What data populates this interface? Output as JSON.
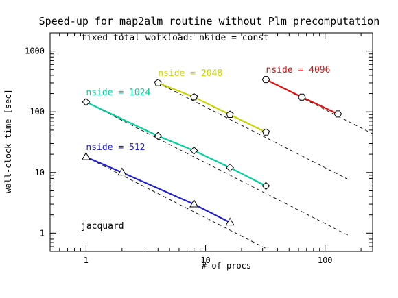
{
  "chart_data": {
    "type": "line",
    "title": "Speed-up for map2alm routine without Plm precomputation",
    "annotations": [
      "fixed total workload: nside = const",
      "jacquard"
    ],
    "xlabel": "# of procs",
    "ylabel": "wall-clock time [sec]",
    "x_scale": "log",
    "y_scale": "log",
    "xlim": [
      0.5,
      250
    ],
    "ylim": [
      0.5,
      2000
    ],
    "x_ticks": [
      1,
      10,
      100
    ],
    "x_tick_labels": [
      "1",
      "10",
      "100"
    ],
    "y_ticks": [
      1,
      10,
      100,
      1000
    ],
    "y_tick_labels": [
      "1",
      "10",
      "100",
      "1000"
    ],
    "grid": false,
    "legend": "none",
    "series": [
      {
        "name": "nside = 512",
        "color": "#2020d0",
        "marker": "triangle",
        "x": [
          1,
          2,
          8,
          16
        ],
        "y": [
          18,
          10,
          3.0,
          1.5
        ],
        "ideal": {
          "x": [
            1,
            32
          ],
          "y": [
            18,
            0.56
          ]
        }
      },
      {
        "name": "nside = 1024",
        "color": "#00d09a",
        "marker": "diamond",
        "x": [
          1,
          4,
          8,
          16,
          32
        ],
        "y": [
          145,
          40,
          23,
          12,
          6
        ],
        "ideal": {
          "x": [
            1,
            160
          ],
          "y": [
            145,
            0.9
          ]
        }
      },
      {
        "name": "nside = 2048",
        "color": "#c8d400",
        "marker": "pentagon",
        "x": [
          4,
          8,
          16,
          32
        ],
        "y": [
          300,
          175,
          90,
          46
        ],
        "ideal": {
          "x": [
            4,
            160
          ],
          "y": [
            300,
            7.5
          ]
        }
      },
      {
        "name": "nside = 4096",
        "color": "#e01010",
        "marker": "hexagon",
        "x": [
          32,
          64,
          128
        ],
        "y": [
          340,
          175,
          92
        ],
        "ideal": {
          "x": [
            32,
            250
          ],
          "y": [
            340,
            43.5
          ]
        }
      }
    ]
  }
}
